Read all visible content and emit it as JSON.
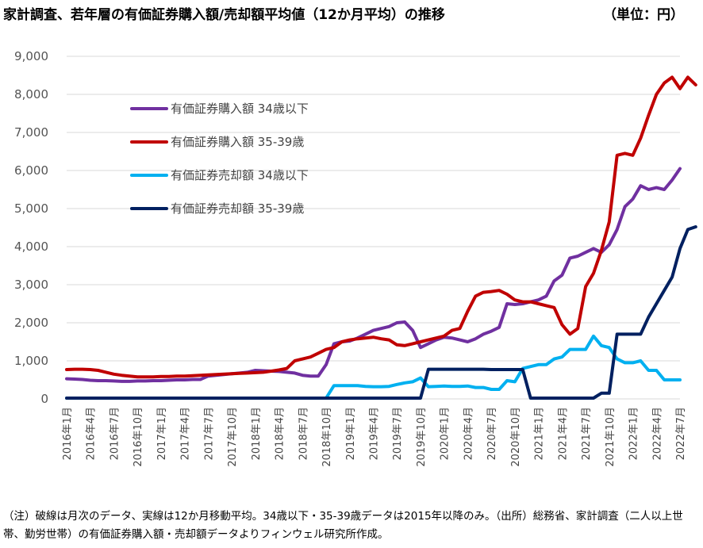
{
  "title": "家計調査、若年層の有価証券購入額/売却額平均値（12か月平均）の推移",
  "unit": "（単位：円）",
  "note": "（注）破線は月次のデータ、実線は12か月移動平均。34歳以下・35-39歳データは2015年以降のみ。（出所）総務省、家計調査（二人以上世帯、勤労世帯）の有価証券購入額・売却額データよりフィンウェル研究所作成。",
  "chart_data": {
    "type": "line",
    "ylim": [
      0,
      9000
    ],
    "y_ticks": [
      "0",
      "1,000",
      "2,000",
      "3,000",
      "4,000",
      "5,000",
      "6,000",
      "7,000",
      "8,000",
      "9,000"
    ],
    "x_tick_labels": [
      "2016年1月",
      "2016年4月",
      "2016年7月",
      "2016年10月",
      "2017年1月",
      "2017年4月",
      "2017年7月",
      "2017年10月",
      "2018年1月",
      "2018年4月",
      "2018年7月",
      "2018年10月",
      "2019年1月",
      "2019年4月",
      "2019年7月",
      "2019年10月",
      "2020年1月",
      "2020年4月",
      "2020年7月",
      "2020年10月",
      "2021年1月",
      "2021年4月",
      "2021年7月",
      "2021年10月",
      "2022年1月",
      "2022年4月",
      "2022年7月"
    ],
    "grid": "horizontal",
    "legend_position": "upper-left",
    "series": [
      {
        "name": "有価証券購入額 34歳以下",
        "color": "#7030a0",
        "values": [
          530,
          520,
          510,
          490,
          480,
          480,
          470,
          460,
          460,
          470,
          470,
          480,
          480,
          490,
          500,
          500,
          510,
          510,
          600,
          620,
          640,
          660,
          680,
          700,
          750,
          740,
          730,
          720,
          700,
          680,
          620,
          600,
          600,
          900,
          1450,
          1500,
          1520,
          1600,
          1700,
          1800,
          1850,
          1900,
          2000,
          2020,
          1800,
          1350,
          1450,
          1550,
          1620,
          1600,
          1550,
          1500,
          1580,
          1700,
          1780,
          1880,
          2500,
          2480,
          2500,
          2550,
          2600,
          2700,
          3100,
          3250,
          3700,
          3750,
          3850,
          3950,
          3850,
          4050,
          4450,
          5050,
          5250,
          5600,
          5500,
          5550,
          5500,
          5750,
          6050
        ]
      },
      {
        "name": "有価証券購入額 35-39歳",
        "color": "#c00000",
        "values": [
          770,
          780,
          780,
          770,
          750,
          700,
          650,
          620,
          600,
          580,
          580,
          580,
          590,
          590,
          600,
          600,
          610,
          620,
          630,
          640,
          650,
          660,
          670,
          680,
          690,
          700,
          730,
          760,
          800,
          1000,
          1050,
          1100,
          1200,
          1300,
          1350,
          1500,
          1550,
          1580,
          1600,
          1620,
          1580,
          1550,
          1420,
          1400,
          1450,
          1500,
          1550,
          1600,
          1650,
          1800,
          1850,
          2300,
          2700,
          2800,
          2820,
          2850,
          2750,
          2600,
          2550,
          2550,
          2500,
          2450,
          2400,
          1950,
          1700,
          1850,
          2950,
          3300,
          3900,
          4650,
          6400,
          6450,
          6400,
          6850,
          7450,
          8000,
          8300,
          8450,
          8150,
          8450,
          8250
        ]
      },
      {
        "name": "有価証券売却額 34歳以下",
        "color": "#00b0f0",
        "values": [
          20,
          20,
          20,
          20,
          20,
          20,
          20,
          20,
          20,
          20,
          20,
          20,
          20,
          20,
          20,
          20,
          20,
          20,
          20,
          20,
          20,
          20,
          20,
          20,
          20,
          20,
          20,
          20,
          20,
          20,
          20,
          20,
          20,
          20,
          350,
          350,
          350,
          350,
          330,
          320,
          320,
          330,
          380,
          420,
          450,
          550,
          320,
          330,
          340,
          330,
          330,
          340,
          300,
          300,
          250,
          250,
          480,
          450,
          800,
          850,
          900,
          900,
          1050,
          1100,
          1300,
          1300,
          1300,
          1650,
          1400,
          1350,
          1050,
          950,
          950,
          1000,
          750,
          750,
          500,
          500,
          500
        ]
      },
      {
        "name": "有価証券売却額 35-39歳",
        "color": "#002060",
        "values": [
          20,
          20,
          20,
          20,
          20,
          20,
          20,
          20,
          20,
          20,
          20,
          20,
          20,
          20,
          20,
          20,
          20,
          20,
          20,
          20,
          20,
          20,
          20,
          20,
          20,
          20,
          20,
          20,
          20,
          20,
          20,
          20,
          20,
          20,
          20,
          20,
          20,
          20,
          20,
          20,
          20,
          20,
          20,
          20,
          20,
          20,
          780,
          780,
          780,
          780,
          780,
          780,
          780,
          780,
          770,
          770,
          770,
          770,
          770,
          20,
          20,
          20,
          20,
          20,
          20,
          20,
          20,
          20,
          150,
          150,
          1700,
          1700,
          1700,
          1700,
          2150,
          2500,
          2850,
          3200,
          3950,
          4450,
          4520
        ]
      }
    ]
  }
}
